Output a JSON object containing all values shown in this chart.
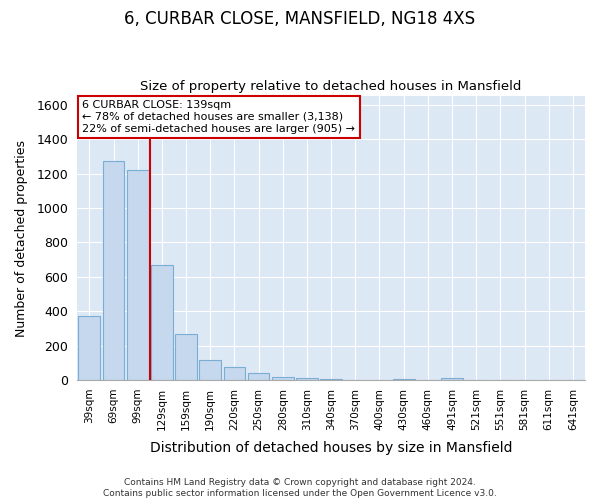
{
  "title": "6, CURBAR CLOSE, MANSFIELD, NG18 4XS",
  "subtitle": "Size of property relative to detached houses in Mansfield",
  "xlabel": "Distribution of detached houses by size in Mansfield",
  "ylabel": "Number of detached properties",
  "footnote": "Contains HM Land Registry data © Crown copyright and database right 2024.\nContains public sector information licensed under the Open Government Licence v3.0.",
  "bar_labels": [
    "39sqm",
    "69sqm",
    "99sqm",
    "129sqm",
    "159sqm",
    "190sqm",
    "220sqm",
    "250sqm",
    "280sqm",
    "310sqm",
    "340sqm",
    "370sqm",
    "400sqm",
    "430sqm",
    "460sqm",
    "491sqm",
    "521sqm",
    "551sqm",
    "581sqm",
    "611sqm",
    "641sqm"
  ],
  "bar_values": [
    370,
    1270,
    1220,
    670,
    270,
    115,
    75,
    40,
    20,
    15,
    5,
    0,
    0,
    5,
    0,
    15,
    0,
    0,
    0,
    0,
    0
  ],
  "bar_color": "#c5d8ee",
  "bar_edge_color": "#7aaed4",
  "vline_color": "#cc0000",
  "ylim": [
    0,
    1650
  ],
  "yticks": [
    0,
    200,
    400,
    600,
    800,
    1000,
    1200,
    1400,
    1600
  ],
  "annotation_text": "6 CURBAR CLOSE: 139sqm\n← 78% of detached houses are smaller (3,138)\n22% of semi-detached houses are larger (905) →",
  "annotation_box_facecolor": "#ffffff",
  "annotation_box_edgecolor": "#cc0000",
  "bg_color": "#ffffff",
  "plot_bg_color": "#dde8f5",
  "grid_color": "#ffffff",
  "title_fontsize": 12,
  "subtitle_fontsize": 9.5,
  "ylabel_fontsize": 9,
  "xlabel_fontsize": 10
}
